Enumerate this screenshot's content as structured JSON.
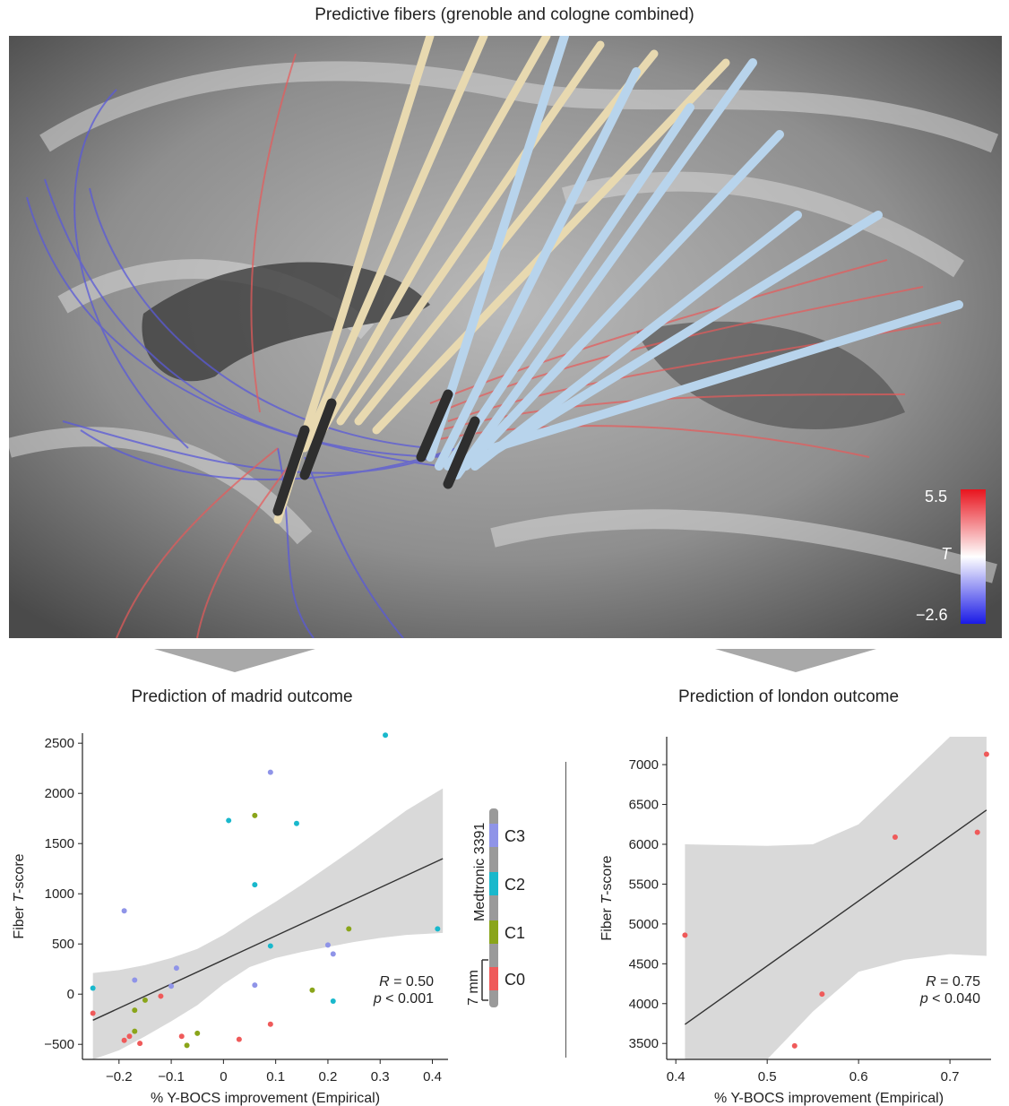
{
  "figure": {
    "top_title": "Predictive fibers (grenoble and cologne combined)",
    "colorbar": {
      "max_label": "5.5",
      "mid_label": "T",
      "min_label": "−2.6",
      "high_color": "#e8141e",
      "mid_color": "#ffffff",
      "low_color": "#1a1ae6"
    },
    "left_subtitle": "Prediction of madrid outcome",
    "right_subtitle": "Prediction of london outcome",
    "electrode": {
      "model_label": "Medtronic 3391",
      "scale_label": "7 mm",
      "contacts": [
        {
          "label": "C3",
          "color": "#8f94e8"
        },
        {
          "label": "C2",
          "color": "#19b8cc"
        },
        {
          "label": "C1",
          "color": "#8aa51a"
        },
        {
          "label": "C0",
          "color": "#ef5a5a"
        }
      ]
    }
  },
  "chart_data": [
    {
      "type": "scatter",
      "title": "Prediction of madrid outcome",
      "xlabel": "% Y-BOCS improvement (Empirical)",
      "ylabel_main": "Fiber ",
      "ylabel_italic": "T",
      "ylabel_tail": "-score",
      "xlim": [
        -0.27,
        0.43
      ],
      "ylim": [
        -650,
        2600
      ],
      "xticks": [
        -0.2,
        -0.1,
        0,
        0.1,
        0.2,
        0.3,
        0.4
      ],
      "xtick_labels": [
        "−0.2",
        "−0.1",
        "0",
        "0.1",
        "0.2",
        "0.3",
        "0.4"
      ],
      "yticks": [
        -500,
        0,
        500,
        1000,
        1500,
        2000,
        2500
      ],
      "ytick_labels": [
        "−500",
        "0",
        "500",
        "1000",
        "1500",
        "2000",
        "2500"
      ],
      "stat_r": "R = 0.50",
      "stat_p": "p < 0.001",
      "fit_line": {
        "x": [
          -0.25,
          0.42
        ],
        "y": [
          -260,
          1350
        ]
      },
      "confidence_band": {
        "x": [
          -0.25,
          -0.2,
          -0.15,
          -0.1,
          -0.05,
          0.0,
          0.05,
          0.1,
          0.15,
          0.2,
          0.25,
          0.3,
          0.35,
          0.42
        ],
        "upper": [
          210,
          240,
          290,
          360,
          450,
          590,
          760,
          920,
          1090,
          1270,
          1450,
          1640,
          1830,
          2050
        ],
        "lower": [
          -650,
          -560,
          -420,
          -270,
          -110,
          100,
          270,
          360,
          420,
          470,
          520,
          560,
          590,
          610
        ]
      },
      "series": [
        {
          "name": "C3",
          "color": "#8f94e8",
          "x": [
            -0.19,
            -0.17,
            -0.1,
            -0.09,
            0.06,
            0.09,
            0.2,
            0.21
          ],
          "y": [
            830,
            140,
            80,
            260,
            90,
            2210,
            490,
            400
          ]
        },
        {
          "name": "C2",
          "color": "#19b8cc",
          "x": [
            -0.25,
            0.01,
            0.06,
            0.09,
            0.14,
            0.21,
            0.31,
            0.41
          ],
          "y": [
            60,
            1730,
            1090,
            480,
            1700,
            -70,
            2580,
            650
          ]
        },
        {
          "name": "C1",
          "color": "#8aa51a",
          "x": [
            -0.17,
            -0.15,
            -0.17,
            -0.07,
            -0.05,
            0.06,
            0.17,
            0.24
          ],
          "y": [
            -160,
            -60,
            -370,
            -510,
            -390,
            1780,
            40,
            650
          ]
        },
        {
          "name": "C0",
          "color": "#ef5a5a",
          "x": [
            -0.25,
            -0.19,
            -0.18,
            -0.16,
            -0.12,
            -0.08,
            0.03,
            0.09
          ],
          "y": [
            -190,
            -460,
            -420,
            -490,
            -20,
            -420,
            -450,
            -300
          ]
        }
      ]
    },
    {
      "type": "scatter",
      "title": "Prediction of london outcome",
      "xlabel": "% Y-BOCS improvement (Empirical)",
      "ylabel_main": "Fiber ",
      "ylabel_italic": "T",
      "ylabel_tail": "-score",
      "xlim": [
        0.39,
        0.745
      ],
      "ylim": [
        3300,
        7350
      ],
      "xticks": [
        0.4,
        0.5,
        0.6,
        0.7
      ],
      "xtick_labels": [
        "0.4",
        "0.5",
        "0.6",
        "0.7"
      ],
      "yticks": [
        3500,
        4000,
        4500,
        5000,
        5500,
        6000,
        6500,
        7000
      ],
      "ytick_labels": [
        "3500",
        "4000",
        "4500",
        "5000",
        "5500",
        "6000",
        "6500",
        "7000"
      ],
      "stat_r": "R = 0.75",
      "stat_p": "p < 0.040",
      "fit_line": {
        "x": [
          0.41,
          0.74
        ],
        "y": [
          3740,
          6430
        ]
      },
      "confidence_band": {
        "x": [
          0.41,
          0.45,
          0.5,
          0.55,
          0.6,
          0.65,
          0.7,
          0.74
        ],
        "upper": [
          6000,
          5990,
          5980,
          6000,
          6250,
          6800,
          7400,
          7600
        ],
        "lower": [
          1000,
          2200,
          3150,
          3900,
          4400,
          4550,
          4620,
          4600
        ]
      },
      "series": [
        {
          "name": "C0",
          "color": "#ef5a5a",
          "x": [
            0.41,
            0.53,
            0.56,
            0.64,
            0.73,
            0.74
          ],
          "y": [
            4860,
            3470,
            4120,
            6090,
            6150,
            7130
          ]
        }
      ]
    }
  ]
}
